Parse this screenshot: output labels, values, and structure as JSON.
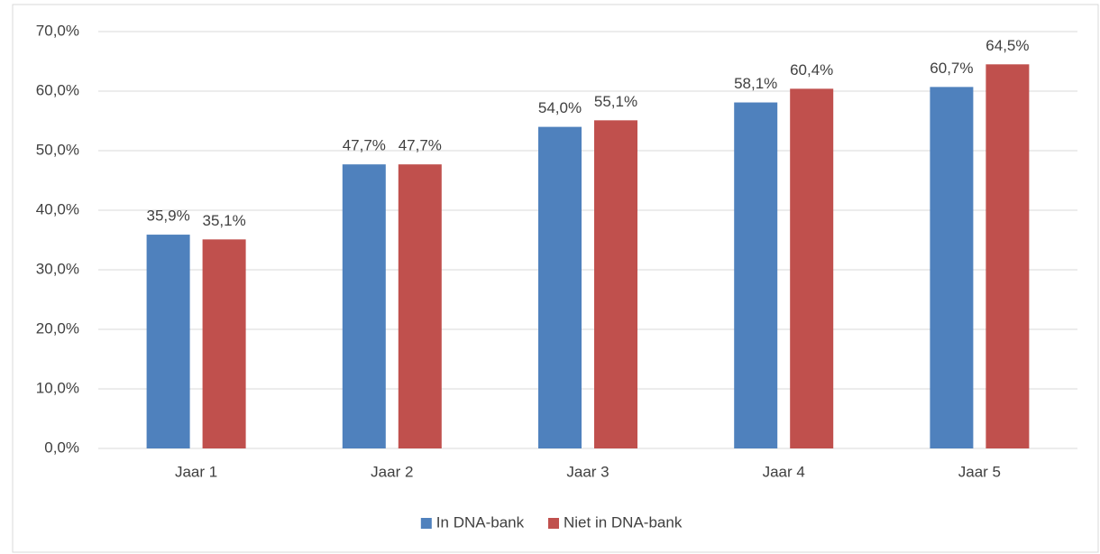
{
  "chart_data": {
    "type": "bar",
    "categories": [
      "Jaar 1",
      "Jaar 2",
      "Jaar 3",
      "Jaar 4",
      "Jaar 5"
    ],
    "series": [
      {
        "name": "In DNA-bank",
        "color": "#4f81bd",
        "values": [
          35.9,
          47.7,
          54.0,
          58.1,
          60.7
        ],
        "value_labels": [
          "35,9%",
          "47,7%",
          "54,0%",
          "58,1%",
          "60,7%"
        ]
      },
      {
        "name": "Niet in DNA-bank",
        "color": "#c0504d",
        "values": [
          35.1,
          47.7,
          55.1,
          60.4,
          64.5
        ],
        "value_labels": [
          "35,1%",
          "47,7%",
          "55,1%",
          "60,4%",
          "64,5%"
        ]
      }
    ],
    "ylim": [
      0,
      70
    ],
    "yticks": [
      {
        "value": 0,
        "label": "0,0%"
      },
      {
        "value": 10,
        "label": "10,0%"
      },
      {
        "value": 20,
        "label": "20,0%"
      },
      {
        "value": 30,
        "label": "30,0%"
      },
      {
        "value": 40,
        "label": "40,0%"
      },
      {
        "value": 50,
        "label": "50,0%"
      },
      {
        "value": 60,
        "label": "60,0%"
      },
      {
        "value": 70,
        "label": "70,0%"
      }
    ],
    "grid": true,
    "legend": "bottom"
  }
}
